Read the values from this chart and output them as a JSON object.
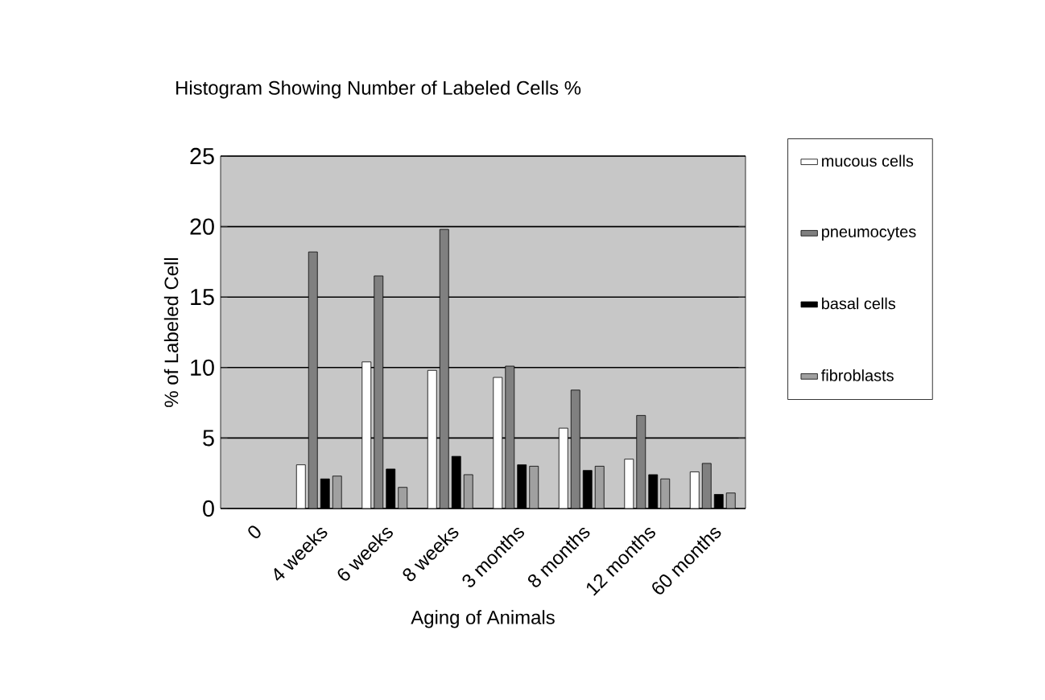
{
  "chart_data": {
    "type": "bar",
    "title": "Histogram Showing Number of Labeled Cells %",
    "xlabel": "Aging of Animals",
    "ylabel": "% of Labeled Cell",
    "categories": [
      "0",
      "4 weeks",
      "6 weeks",
      "8 weeks",
      "3 months",
      "8 months",
      "12 months",
      "60 months"
    ],
    "series": [
      {
        "name": "mucous cells",
        "color": "#ffffff",
        "values": [
          null,
          3.1,
          10.4,
          9.8,
          9.3,
          5.7,
          3.5,
          2.6
        ]
      },
      {
        "name": "pneumocytes",
        "color": "#808080",
        "values": [
          null,
          18.2,
          16.5,
          19.8,
          10.1,
          8.4,
          6.6,
          3.2
        ]
      },
      {
        "name": "basal cells",
        "color": "#000000",
        "values": [
          null,
          2.1,
          2.8,
          3.7,
          3.1,
          2.7,
          2.4,
          1.0
        ]
      },
      {
        "name": "fibroblasts",
        "color": "#a0a0a0",
        "values": [
          null,
          2.3,
          1.5,
          2.4,
          3.0,
          3.0,
          2.1,
          1.1
        ]
      }
    ],
    "ylim": [
      0,
      25
    ],
    "yticks": [
      0,
      5,
      10,
      15,
      20,
      25
    ],
    "grid": "y",
    "legend": "right"
  }
}
